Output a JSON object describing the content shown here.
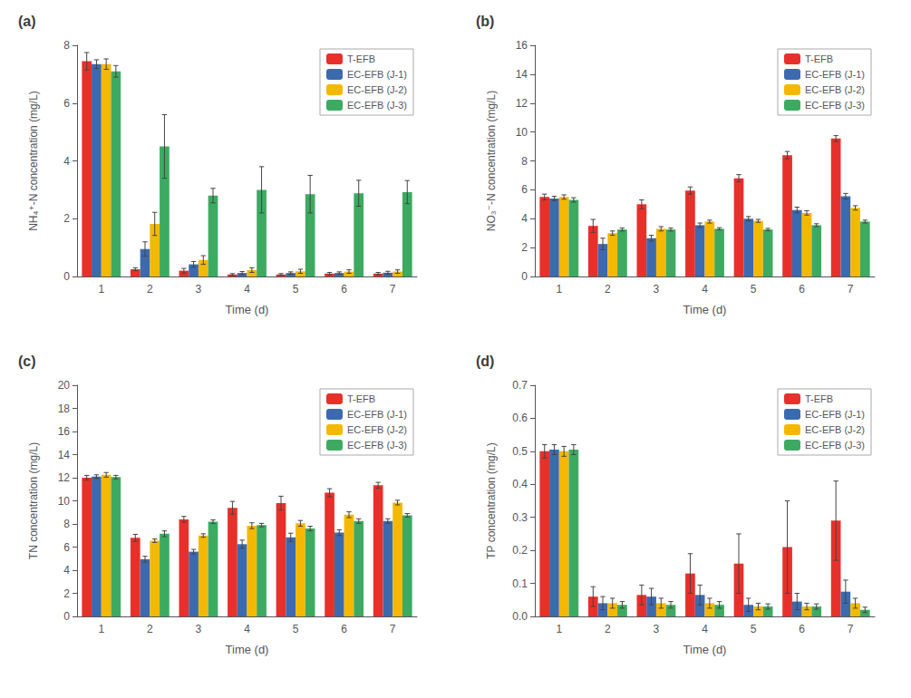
{
  "chart_data": [
    {
      "type": "bar",
      "title": "(a)",
      "xlabel": "Time (d)",
      "ylabel": "NH₄⁺-N concentration (mg/L)",
      "categories": [
        1,
        2,
        3,
        4,
        5,
        6,
        7
      ],
      "series": [
        {
          "name": "T-EFB",
          "color": "#E8302A",
          "values": [
            7.45,
            0.25,
            0.2,
            0.07,
            0.07,
            0.1,
            0.1
          ],
          "errors": [
            0.3,
            0.05,
            0.08,
            0.03,
            0.03,
            0.04,
            0.04
          ]
        },
        {
          "name": "EC-EFB (J-1)",
          "color": "#3B6AAF",
          "values": [
            7.35,
            0.95,
            0.42,
            0.12,
            0.12,
            0.12,
            0.13
          ],
          "errors": [
            0.15,
            0.25,
            0.1,
            0.05,
            0.04,
            0.04,
            0.05
          ]
        },
        {
          "name": "EC-EFB (J-2)",
          "color": "#F5B800",
          "values": [
            7.35,
            1.82,
            0.57,
            0.22,
            0.18,
            0.17,
            0.17
          ],
          "errors": [
            0.18,
            0.4,
            0.15,
            0.08,
            0.07,
            0.06,
            0.06
          ]
        },
        {
          "name": "EC-EFB (J-3)",
          "color": "#3DAA62",
          "values": [
            7.1,
            4.5,
            2.8,
            3.0,
            2.85,
            2.88,
            2.92
          ],
          "errors": [
            0.2,
            1.1,
            0.25,
            0.8,
            0.65,
            0.45,
            0.4
          ]
        }
      ],
      "ylim": [
        0,
        8
      ],
      "yticks": [
        0,
        2,
        4,
        6,
        8
      ],
      "grid": false,
      "legend": "upper right"
    },
    {
      "type": "bar",
      "title": "(b)",
      "xlabel": "Time (d)",
      "ylabel": "NO₃⁻-N concentration (mg/L)",
      "categories": [
        1,
        2,
        3,
        4,
        5,
        6,
        7
      ],
      "series": [
        {
          "name": "T-EFB",
          "color": "#E8302A",
          "values": [
            5.5,
            3.5,
            5.0,
            5.95,
            6.8,
            8.4,
            9.55
          ],
          "errors": [
            0.2,
            0.45,
            0.3,
            0.25,
            0.25,
            0.25,
            0.2
          ]
        },
        {
          "name": "EC-EFB (J-1)",
          "color": "#3B6AAF",
          "values": [
            5.4,
            2.25,
            2.65,
            3.55,
            4.0,
            4.6,
            5.55
          ],
          "errors": [
            0.15,
            0.4,
            0.2,
            0.15,
            0.15,
            0.2,
            0.2
          ]
        },
        {
          "name": "EC-EFB (J-2)",
          "color": "#F5B800",
          "values": [
            5.5,
            3.0,
            3.3,
            3.8,
            3.85,
            4.4,
            4.75
          ],
          "errors": [
            0.15,
            0.15,
            0.15,
            0.1,
            0.1,
            0.15,
            0.15
          ]
        },
        {
          "name": "EC-EFB (J-3)",
          "color": "#3DAA62",
          "values": [
            5.3,
            3.25,
            3.25,
            3.3,
            3.25,
            3.55,
            3.8
          ],
          "errors": [
            0.15,
            0.1,
            0.1,
            0.08,
            0.08,
            0.1,
            0.1
          ]
        }
      ],
      "ylim": [
        0,
        16
      ],
      "yticks": [
        0,
        2,
        4,
        6,
        8,
        10,
        12,
        14,
        16
      ],
      "grid": false,
      "legend": "upper right"
    },
    {
      "type": "bar",
      "title": "(c)",
      "xlabel": "Time (d)",
      "ylabel": "TN concentration (mg/L)",
      "categories": [
        1,
        2,
        3,
        4,
        5,
        6,
        7
      ],
      "series": [
        {
          "name": "T-EFB",
          "color": "#E8302A",
          "values": [
            12.0,
            6.8,
            8.4,
            9.4,
            9.8,
            10.7,
            11.35
          ],
          "errors": [
            0.2,
            0.3,
            0.25,
            0.55,
            0.6,
            0.35,
            0.25
          ]
        },
        {
          "name": "EC-EFB (J-1)",
          "color": "#3B6AAF",
          "values": [
            12.1,
            4.95,
            5.6,
            6.25,
            6.85,
            7.25,
            8.25
          ],
          "errors": [
            0.15,
            0.25,
            0.2,
            0.35,
            0.35,
            0.25,
            0.2
          ]
        },
        {
          "name": "EC-EFB (J-2)",
          "color": "#F5B800",
          "values": [
            12.25,
            6.55,
            7.0,
            7.85,
            8.05,
            8.8,
            9.85
          ],
          "errors": [
            0.2,
            0.15,
            0.15,
            0.25,
            0.25,
            0.25,
            0.2
          ]
        },
        {
          "name": "EC-EFB (J-3)",
          "color": "#3DAA62",
          "values": [
            12.05,
            7.15,
            8.2,
            7.9,
            7.6,
            8.25,
            8.75
          ],
          "errors": [
            0.15,
            0.25,
            0.15,
            0.15,
            0.2,
            0.2,
            0.15
          ]
        }
      ],
      "ylim": [
        0,
        20
      ],
      "yticks": [
        0,
        2,
        4,
        6,
        8,
        10,
        12,
        14,
        16,
        18,
        20
      ],
      "grid": false,
      "legend": "upper right"
    },
    {
      "type": "bar",
      "title": "(d)",
      "xlabel": "Time (d)",
      "ylabel": "TP concentration (mg/L)",
      "categories": [
        1,
        2,
        3,
        4,
        5,
        6,
        7
      ],
      "series": [
        {
          "name": "T-EFB",
          "color": "#E8302A",
          "values": [
            0.5,
            0.06,
            0.065,
            0.13,
            0.16,
            0.21,
            0.29
          ],
          "errors": [
            0.02,
            0.03,
            0.03,
            0.06,
            0.09,
            0.14,
            0.12
          ]
        },
        {
          "name": "EC-EFB (J-1)",
          "color": "#3B6AAF",
          "values": [
            0.505,
            0.04,
            0.06,
            0.065,
            0.035,
            0.045,
            0.075
          ],
          "errors": [
            0.015,
            0.02,
            0.025,
            0.03,
            0.02,
            0.025,
            0.035
          ]
        },
        {
          "name": "EC-EFB (J-2)",
          "color": "#F5B800",
          "values": [
            0.5,
            0.04,
            0.04,
            0.04,
            0.03,
            0.03,
            0.04
          ],
          "errors": [
            0.015,
            0.015,
            0.015,
            0.015,
            0.01,
            0.01,
            0.015
          ]
        },
        {
          "name": "EC-EFB (J-3)",
          "color": "#3DAA62",
          "values": [
            0.505,
            0.035,
            0.035,
            0.035,
            0.03,
            0.03,
            0.02
          ],
          "errors": [
            0.015,
            0.01,
            0.01,
            0.01,
            0.008,
            0.008,
            0.008
          ]
        }
      ],
      "ylim": [
        0,
        0.7
      ],
      "yticks": [
        {
          "value": 0,
          "label": "0.0"
        },
        0.1,
        0.2,
        0.3,
        0.4,
        0.5,
        0.6,
        0.7
      ],
      "grid": false,
      "legend": "upper right"
    }
  ]
}
